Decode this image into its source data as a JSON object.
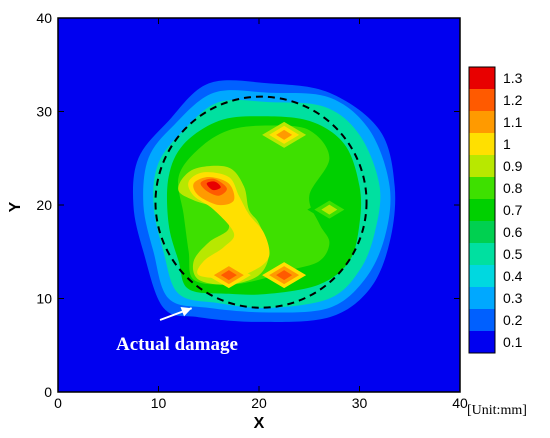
{
  "chart_data": {
    "type": "heatmap",
    "title": "",
    "xlabel": "X",
    "ylabel": "Y",
    "xlim": [
      0,
      40
    ],
    "ylim": [
      0,
      40
    ],
    "xticks": [
      "0",
      "10",
      "20",
      "30",
      "40"
    ],
    "yticks": [
      "0",
      "10",
      "20",
      "30",
      "40"
    ],
    "unit_label": "[Unit:mm]",
    "background_value": 0.1,
    "colorbar": {
      "placement": "right",
      "levels": [
        "1.3",
        "1.2",
        "1.1",
        "1",
        "0.9",
        "0.8",
        "0.7",
        "0.6",
        "0.5",
        "0.4",
        "0.3",
        "0.2",
        "0.1"
      ],
      "colors": [
        "#e80000",
        "#ff5a00",
        "#ff9a00",
        "#ffe000",
        "#b8e800",
        "#3ee000",
        "#00d000",
        "#00d050",
        "#00e0a0",
        "#00d8e0",
        "#00a8ff",
        "#0060ff",
        "#0000f0"
      ]
    },
    "damage_region": {
      "type": "contour",
      "levels": [
        {
          "value": 0.2,
          "points": [
            [
              10.5,
              9
            ],
            [
              14,
              8
            ],
            [
              20,
              7.5
            ],
            [
              27,
              8
            ],
            [
              31,
              11
            ],
            [
              33,
              16
            ],
            [
              33.5,
              22
            ],
            [
              32,
              28
            ],
            [
              27,
              32
            ],
            [
              21,
              33
            ],
            [
              15,
              33
            ],
            [
              11,
              29
            ],
            [
              8,
              25
            ],
            [
              7.5,
              20
            ],
            [
              8.5,
              15
            ]
          ]
        },
        {
          "value": 0.3,
          "points": [
            [
              11,
              10
            ],
            [
              15,
              9
            ],
            [
              21,
              8.5
            ],
            [
              27,
              9
            ],
            [
              30.5,
              12
            ],
            [
              32.5,
              16.5
            ],
            [
              33,
              22
            ],
            [
              31,
              28
            ],
            [
              27,
              31.5
            ],
            [
              21,
              32
            ],
            [
              15.5,
              32
            ],
            [
              11.5,
              28.5
            ],
            [
              9,
              25
            ],
            [
              8.5,
              20
            ],
            [
              9.5,
              15
            ]
          ]
        },
        {
          "value": 0.5,
          "points": [
            [
              12,
              10.5
            ],
            [
              16,
              9.5
            ],
            [
              21,
              9
            ],
            [
              27,
              10
            ],
            [
              30,
              13
            ],
            [
              31.5,
              17
            ],
            [
              32,
              22
            ],
            [
              30,
              27.5
            ],
            [
              26.5,
              30.5
            ],
            [
              21,
              31
            ],
            [
              16,
              31
            ],
            [
              12.5,
              28
            ],
            [
              10,
              24.5
            ],
            [
              9.5,
              20
            ],
            [
              10.5,
              15
            ]
          ]
        },
        {
          "value": 0.7,
          "points": [
            [
              13,
              11
            ],
            [
              17,
              10.5
            ],
            [
              21,
              10.5
            ],
            [
              26,
              11.5
            ],
            [
              29,
              14
            ],
            [
              30,
              18
            ],
            [
              30,
              22
            ],
            [
              28.5,
              26.5
            ],
            [
              25,
              29
            ],
            [
              20,
              29.5
            ],
            [
              16,
              29
            ],
            [
              12.5,
              26.5
            ],
            [
              11,
              23
            ],
            [
              11,
              18
            ],
            [
              12,
              14
            ]
          ]
        },
        {
          "value": 0.8,
          "points": [
            [
              13.5,
              12
            ],
            [
              17,
              11.5
            ],
            [
              20,
              12
            ],
            [
              23,
              13
            ],
            [
              26,
              14
            ],
            [
              27,
              16
            ],
            [
              26,
              18
            ],
            [
              25,
              21
            ],
            [
              27,
              25
            ],
            [
              25,
              28
            ],
            [
              21,
              28.5
            ],
            [
              17,
              28
            ],
            [
              14,
              26
            ],
            [
              12,
              23
            ],
            [
              12.5,
              19
            ],
            [
              13,
              15
            ]
          ]
        },
        {
          "value": 0.9,
          "points": [
            [
              12.5,
              23
            ],
            [
              14,
              24
            ],
            [
              17,
              24
            ],
            [
              18.5,
              22
            ],
            [
              19,
              19.5
            ],
            [
              20,
              18
            ],
            [
              21,
              15
            ],
            [
              20,
              12.5
            ],
            [
              17,
              11.5
            ],
            [
              14,
              12
            ],
            [
              13.5,
              14
            ],
            [
              15,
              16
            ],
            [
              17,
              17.5
            ],
            [
              16,
              19.5
            ],
            [
              13.5,
              20.5
            ],
            [
              12,
              21.5
            ]
          ]
        },
        {
          "value": 1.0,
          "points": [
            [
              13,
              22.5
            ],
            [
              14.5,
              23.5
            ],
            [
              17,
              23
            ],
            [
              18,
              21
            ],
            [
              19,
              19
            ],
            [
              20.5,
              17
            ],
            [
              21,
              14.5
            ],
            [
              19.5,
              13
            ],
            [
              17,
              12.2
            ],
            [
              14,
              12.5
            ],
            [
              14.5,
              14
            ],
            [
              16.5,
              15.5
            ],
            [
              17.5,
              17
            ],
            [
              15.5,
              19.5
            ],
            [
              13.5,
              21
            ]
          ]
        },
        {
          "value": 1.1,
          "points": [
            [
              13.5,
              22.3
            ],
            [
              15,
              23
            ],
            [
              17,
              22.3
            ],
            [
              17.5,
              20.5
            ],
            [
              16,
              20
            ],
            [
              14,
              21
            ]
          ]
        },
        {
          "value": 1.2,
          "points": [
            [
              14.2,
              22.4
            ],
            [
              15.5,
              22.8
            ],
            [
              16.8,
              21.8
            ],
            [
              16,
              21
            ],
            [
              14.8,
              21.5
            ]
          ]
        },
        {
          "value": 1.3,
          "points": [
            [
              14.8,
              22.3
            ],
            [
              15.6,
              22.5
            ],
            [
              16.2,
              21.9
            ],
            [
              15.4,
              21.6
            ]
          ]
        }
      ],
      "secondary_peaks": [
        {
          "x": 22.5,
          "y": 27.5,
          "value": 1.1
        },
        {
          "x": 22.5,
          "y": 12.5,
          "value": 1.2
        },
        {
          "x": 17,
          "y": 12.5,
          "value": 1.2
        },
        {
          "x": 27,
          "y": 19.5,
          "value": 0.9
        }
      ]
    },
    "annotations": [
      {
        "text": "Actual damage",
        "arrow_to": [
          13.3,
          9.6
        ]
      }
    ],
    "dashed_circle": {
      "center": [
        20.2,
        20.3
      ],
      "radius": 10.5
    }
  }
}
